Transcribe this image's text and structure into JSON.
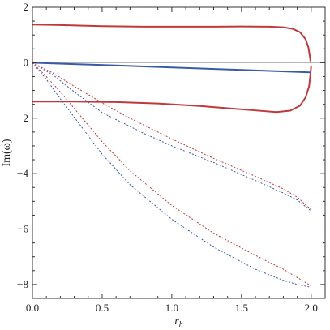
{
  "chart_data": {
    "type": "line",
    "xlabel": "r",
    "xlabel_sub": "h",
    "ylabel": "Im(ω)",
    "xlim": [
      0,
      2.1
    ],
    "ylim": [
      -8.5,
      2
    ],
    "xticks": [
      {
        "value": 0.0,
        "label": "0.0"
      },
      {
        "value": 0.5,
        "label": "0.5"
      },
      {
        "value": 1.0,
        "label": "1.0"
      },
      {
        "value": 1.5,
        "label": "1.5"
      },
      {
        "value": 2.0,
        "label": "2.0"
      }
    ],
    "yticks": [
      {
        "value": 2,
        "label": "2"
      },
      {
        "value": 0,
        "label": "0"
      },
      {
        "value": -2,
        "label": "−2"
      },
      {
        "value": -4,
        "label": "−4"
      },
      {
        "value": -6,
        "label": "−6"
      },
      {
        "value": -8,
        "label": "−8"
      }
    ],
    "zero_line": 0,
    "colors": {
      "red": "#c0393b",
      "blue": "#3a5aa8",
      "zero": "#aaaaaa",
      "frame": "#333333"
    },
    "series": [
      {
        "id": "red-solid-upper",
        "color": "red",
        "style": "solid",
        "points": [
          [
            0,
            1.38
          ],
          [
            0.2,
            1.36
          ],
          [
            0.5,
            1.32
          ],
          [
            0.8,
            1.3
          ],
          [
            1.0,
            1.3
          ],
          [
            1.3,
            1.3
          ],
          [
            1.5,
            1.31
          ],
          [
            1.7,
            1.3
          ],
          [
            1.8,
            1.28
          ],
          [
            1.87,
            1.22
          ],
          [
            1.92,
            1.1
          ],
          [
            1.96,
            0.85
          ],
          [
            1.98,
            0.55
          ],
          [
            1.99,
            0.25
          ],
          [
            1.995,
            0.05
          ]
        ]
      },
      {
        "id": "red-solid-lower",
        "color": "red",
        "style": "solid",
        "points": [
          [
            0,
            -1.4
          ],
          [
            0.3,
            -1.4
          ],
          [
            0.6,
            -1.42
          ],
          [
            0.9,
            -1.47
          ],
          [
            1.2,
            -1.56
          ],
          [
            1.4,
            -1.64
          ],
          [
            1.6,
            -1.72
          ],
          [
            1.75,
            -1.78
          ],
          [
            1.85,
            -1.73
          ],
          [
            1.92,
            -1.55
          ],
          [
            1.96,
            -1.25
          ],
          [
            1.985,
            -0.85
          ],
          [
            1.995,
            -0.4
          ],
          [
            2.0,
            -0.1
          ]
        ]
      },
      {
        "id": "blue-solid",
        "color": "blue",
        "style": "solid",
        "points": [
          [
            0,
            0
          ],
          [
            0.3,
            -0.05
          ],
          [
            0.6,
            -0.1
          ],
          [
            1.0,
            -0.17
          ],
          [
            1.5,
            -0.26
          ],
          [
            2.0,
            -0.35
          ]
        ]
      },
      {
        "id": "blue-dotted-1",
        "color": "blue",
        "style": "dotted",
        "points": [
          [
            0,
            0
          ],
          [
            0.15,
            -0.45
          ],
          [
            0.3,
            -1.05
          ],
          [
            0.5,
            -1.8
          ],
          [
            0.8,
            -2.55
          ],
          [
            1.0,
            -3.0
          ],
          [
            1.3,
            -3.6
          ],
          [
            1.6,
            -4.25
          ],
          [
            1.8,
            -4.7
          ],
          [
            1.9,
            -4.95
          ],
          [
            2.0,
            -5.35
          ]
        ]
      },
      {
        "id": "red-dotted-1",
        "color": "red",
        "style": "dotted",
        "points": [
          [
            0,
            0
          ],
          [
            0.15,
            -0.38
          ],
          [
            0.3,
            -0.85
          ],
          [
            0.5,
            -1.45
          ],
          [
            0.7,
            -2.0
          ],
          [
            1.0,
            -2.75
          ],
          [
            1.3,
            -3.45
          ],
          [
            1.6,
            -4.1
          ],
          [
            1.8,
            -4.55
          ],
          [
            1.9,
            -4.85
          ],
          [
            2.0,
            -5.3
          ]
        ]
      },
      {
        "id": "blue-dotted-2",
        "color": "blue",
        "style": "dotted",
        "points": [
          [
            0,
            0
          ],
          [
            0.1,
            -0.6
          ],
          [
            0.2,
            -1.3
          ],
          [
            0.35,
            -2.3
          ],
          [
            0.5,
            -3.3
          ],
          [
            0.7,
            -4.4
          ],
          [
            1.0,
            -5.65
          ],
          [
            1.3,
            -6.65
          ],
          [
            1.6,
            -7.45
          ],
          [
            1.8,
            -7.85
          ],
          [
            1.9,
            -8.0
          ],
          [
            2.0,
            -8.1
          ]
        ]
      },
      {
        "id": "red-dotted-2",
        "color": "red",
        "style": "dotted",
        "points": [
          [
            0,
            0
          ],
          [
            0.1,
            -0.5
          ],
          [
            0.2,
            -1.05
          ],
          [
            0.35,
            -1.95
          ],
          [
            0.5,
            -2.85
          ],
          [
            0.7,
            -3.9
          ],
          [
            1.0,
            -5.15
          ],
          [
            1.3,
            -6.15
          ],
          [
            1.6,
            -6.95
          ],
          [
            1.8,
            -7.45
          ],
          [
            1.9,
            -7.75
          ],
          [
            2.0,
            -8.05
          ]
        ]
      }
    ]
  }
}
